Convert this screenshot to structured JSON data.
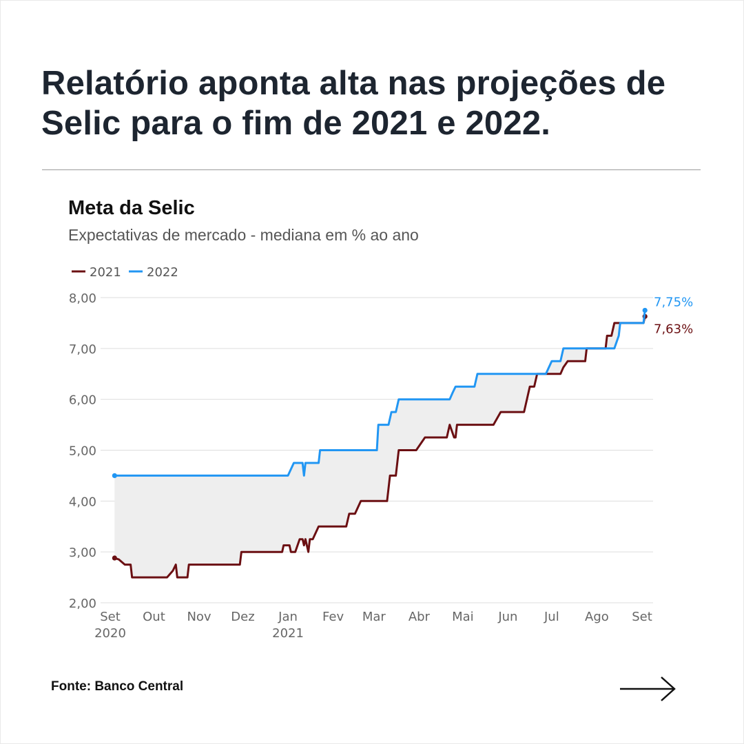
{
  "headline": {
    "line1": "Relatório aponta alta nas projeções de",
    "line2": "Selic para o fim de 2021 e 2022."
  },
  "source": "Fonte: Banco Central",
  "icons": {
    "next": "arrow-right-icon"
  },
  "colors": {
    "series_2021": "#6b0f12",
    "series_2022": "#2196f3",
    "band_fill": "#eeeeee",
    "grid": "#dddddd"
  },
  "chart_data": {
    "type": "line",
    "title": "Meta da Selic",
    "subtitle": "Expectativas de mercado - mediana em % ao ano",
    "xlabel": "",
    "ylabel": "",
    "ylim": [
      2.0,
      8.0
    ],
    "yticks": [
      "2,00",
      "3,00",
      "4,00",
      "5,00",
      "6,00",
      "7,00",
      "8,00"
    ],
    "xlim": [
      "2020-09-01",
      "2021-09-07"
    ],
    "xticks": [
      {
        "date": "2020-09-01",
        "label": "Set",
        "sublabel": "2020"
      },
      {
        "date": "2020-10-01",
        "label": "Out",
        "sublabel": ""
      },
      {
        "date": "2020-11-01",
        "label": "Nov",
        "sublabel": ""
      },
      {
        "date": "2020-12-01",
        "label": "Dez",
        "sublabel": ""
      },
      {
        "date": "2021-01-01",
        "label": "Jan",
        "sublabel": "2021"
      },
      {
        "date": "2021-02-01",
        "label": "Fev",
        "sublabel": ""
      },
      {
        "date": "2021-03-01",
        "label": "Mar",
        "sublabel": ""
      },
      {
        "date": "2021-04-01",
        "label": "Abr",
        "sublabel": ""
      },
      {
        "date": "2021-05-01",
        "label": "Mai",
        "sublabel": ""
      },
      {
        "date": "2021-06-01",
        "label": "Jun",
        "sublabel": ""
      },
      {
        "date": "2021-07-01",
        "label": "Jul",
        "sublabel": ""
      },
      {
        "date": "2021-08-01",
        "label": "Ago",
        "sublabel": ""
      },
      {
        "date": "2021-09-01",
        "label": "Set",
        "sublabel": ""
      }
    ],
    "grid": true,
    "legend": "top-left",
    "series": [
      {
        "name": "2021",
        "color": "#6b0f12",
        "end_label": "7,63%",
        "points": [
          [
            "2020-09-04",
            2.88
          ],
          [
            "2020-09-07",
            2.85
          ],
          [
            "2020-09-11",
            2.75
          ],
          [
            "2020-09-15",
            2.75
          ],
          [
            "2020-09-16",
            2.5
          ],
          [
            "2020-10-10",
            2.5
          ],
          [
            "2020-10-14",
            2.63
          ],
          [
            "2020-10-16",
            2.75
          ],
          [
            "2020-10-17",
            2.5
          ],
          [
            "2020-10-24",
            2.5
          ],
          [
            "2020-10-25",
            2.75
          ],
          [
            "2020-11-29",
            2.75
          ],
          [
            "2020-11-30",
            3.0
          ],
          [
            "2020-12-28",
            3.0
          ],
          [
            "2020-12-29",
            3.13
          ],
          [
            "2021-01-02",
            3.13
          ],
          [
            "2021-01-03",
            3.0
          ],
          [
            "2021-01-06",
            3.0
          ],
          [
            "2021-01-09",
            3.25
          ],
          [
            "2021-01-11",
            3.25
          ],
          [
            "2021-01-12",
            3.13
          ],
          [
            "2021-01-13",
            3.25
          ],
          [
            "2021-01-15",
            3.0
          ],
          [
            "2021-01-16",
            3.25
          ],
          [
            "2021-01-18",
            3.25
          ],
          [
            "2021-01-22",
            3.5
          ],
          [
            "2021-02-10",
            3.5
          ],
          [
            "2021-02-12",
            3.75
          ],
          [
            "2021-02-16",
            3.75
          ],
          [
            "2021-02-20",
            4.0
          ],
          [
            "2021-03-10",
            4.0
          ],
          [
            "2021-03-12",
            4.5
          ],
          [
            "2021-03-16",
            4.5
          ],
          [
            "2021-03-18",
            5.0
          ],
          [
            "2021-03-30",
            5.0
          ],
          [
            "2021-04-05",
            5.25
          ],
          [
            "2021-04-20",
            5.25
          ],
          [
            "2021-04-22",
            5.5
          ],
          [
            "2021-04-25",
            5.25
          ],
          [
            "2021-04-26",
            5.25
          ],
          [
            "2021-04-27",
            5.5
          ],
          [
            "2021-05-22",
            5.5
          ],
          [
            "2021-05-27",
            5.75
          ],
          [
            "2021-06-12",
            5.75
          ],
          [
            "2021-06-14",
            6.0
          ],
          [
            "2021-06-16",
            6.25
          ],
          [
            "2021-06-19",
            6.25
          ],
          [
            "2021-06-21",
            6.5
          ],
          [
            "2021-07-07",
            6.5
          ],
          [
            "2021-07-09",
            6.63
          ],
          [
            "2021-07-12",
            6.75
          ],
          [
            "2021-07-24",
            6.75
          ],
          [
            "2021-07-25",
            7.0
          ],
          [
            "2021-08-07",
            7.0
          ],
          [
            "2021-08-08",
            7.25
          ],
          [
            "2021-08-11",
            7.25
          ],
          [
            "2021-08-13",
            7.5
          ],
          [
            "2021-09-02",
            7.5
          ],
          [
            "2021-09-03",
            7.63
          ]
        ]
      },
      {
        "name": "2022",
        "color": "#2196f3",
        "end_label": "7,75%",
        "points": [
          [
            "2020-09-04",
            4.5
          ],
          [
            "2021-01-01",
            4.5
          ],
          [
            "2021-01-05",
            4.75
          ],
          [
            "2021-01-11",
            4.75
          ],
          [
            "2021-01-12",
            4.5
          ],
          [
            "2021-01-13",
            4.75
          ],
          [
            "2021-01-22",
            4.75
          ],
          [
            "2021-01-23",
            5.0
          ],
          [
            "2021-03-03",
            5.0
          ],
          [
            "2021-03-04",
            5.5
          ],
          [
            "2021-03-11",
            5.5
          ],
          [
            "2021-03-13",
            5.75
          ],
          [
            "2021-03-16",
            5.75
          ],
          [
            "2021-03-18",
            6.0
          ],
          [
            "2021-04-22",
            6.0
          ],
          [
            "2021-04-24",
            6.13
          ],
          [
            "2021-04-26",
            6.25
          ],
          [
            "2021-05-09",
            6.25
          ],
          [
            "2021-05-11",
            6.5
          ],
          [
            "2021-06-27",
            6.5
          ],
          [
            "2021-07-01",
            6.75
          ],
          [
            "2021-07-07",
            6.75
          ],
          [
            "2021-07-09",
            7.0
          ],
          [
            "2021-07-27",
            7.0
          ],
          [
            "2021-08-13",
            7.0
          ],
          [
            "2021-08-16",
            7.25
          ],
          [
            "2021-08-17",
            7.5
          ],
          [
            "2021-09-02",
            7.5
          ],
          [
            "2021-09-03",
            7.75
          ]
        ]
      }
    ]
  }
}
